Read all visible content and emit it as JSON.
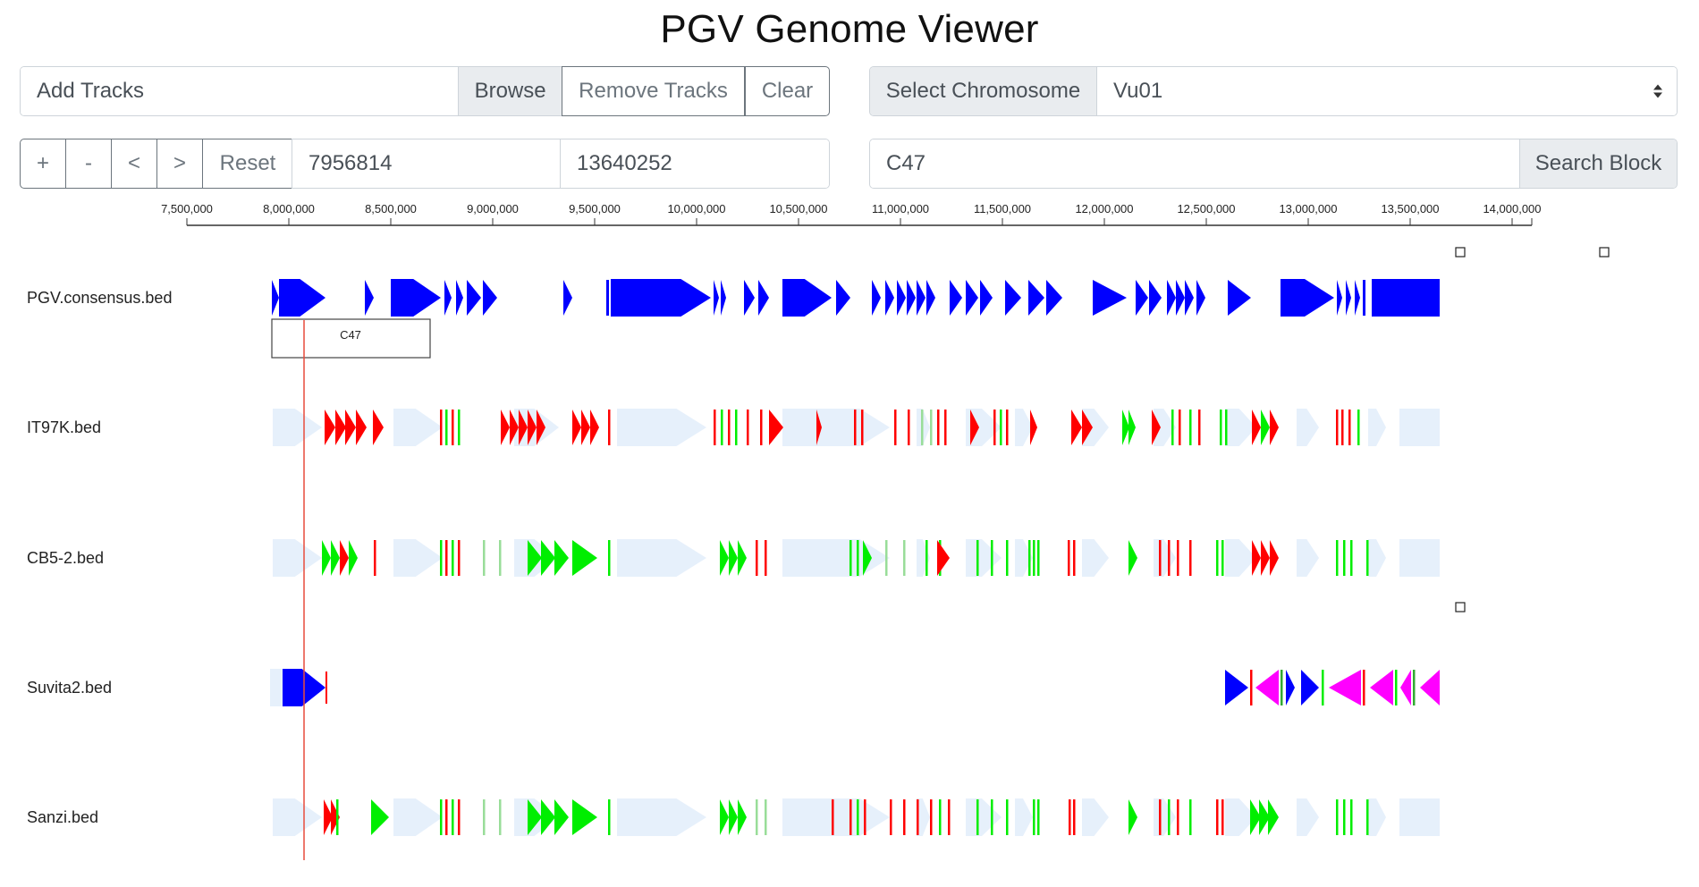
{
  "title": "PGV Genome Viewer",
  "toolbar": {
    "add_tracks_placeholder": "Add Tracks",
    "browse_label": "Browse",
    "remove_tracks_label": "Remove Tracks",
    "clear_label": "Clear",
    "select_chromosome_label": "Select Chromosome",
    "chromosome_value": "Vu01",
    "zoom_in": "+",
    "zoom_out": "-",
    "pan_left": "<",
    "pan_right": ">",
    "reset_label": "Reset",
    "start_value": "7956814",
    "end_value": "13640252",
    "block_value": "C47",
    "search_block_label": "Search Block"
  },
  "axis": {
    "ticks": [
      "7,500,000",
      "8,000,000",
      "8,500,000",
      "9,000,000",
      "9,500,000",
      "10,000,000",
      "10,500,000",
      "11,000,000",
      "11,500,000",
      "12,000,000",
      "12,500,000",
      "13,000,000",
      "13,500,000",
      "14,000,000"
    ]
  },
  "selected_block": "C47",
  "tracks": [
    {
      "name": "PGV.consensus.bed"
    },
    {
      "name": "IT97K.bed"
    },
    {
      "name": "CB5-2.bed"
    },
    {
      "name": "Suvita2.bed"
    },
    {
      "name": "Sanzi.bed"
    }
  ],
  "colors": {
    "consensus": "#0000ff",
    "ghost": "#e6f0fb",
    "red": "#ff0000",
    "green": "#00ee00",
    "magenta": "#ff00ff",
    "marker": "#e74c3c"
  }
}
